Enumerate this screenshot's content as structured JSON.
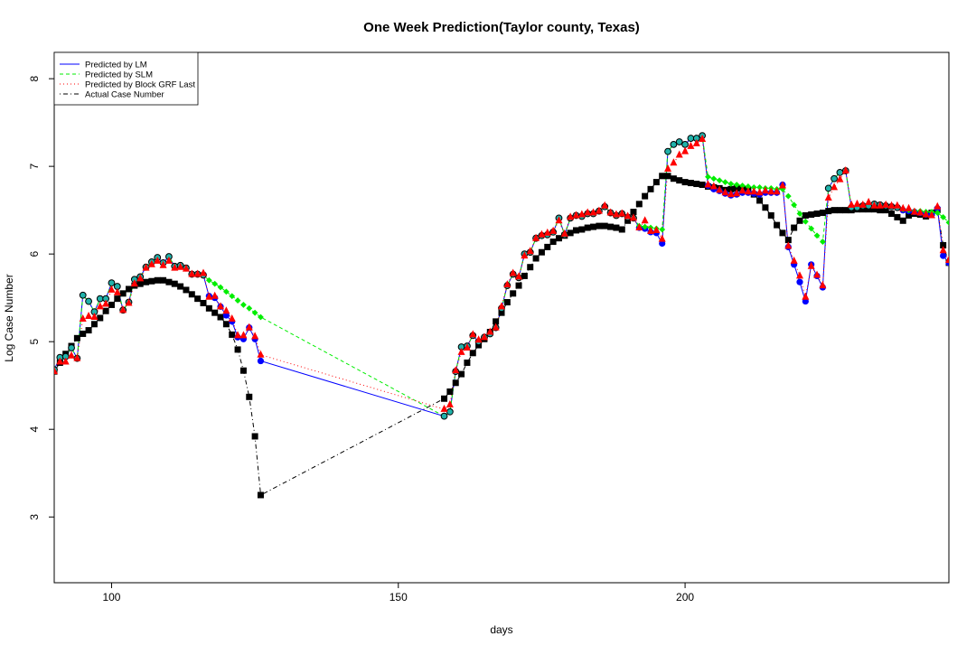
{
  "chart_data": {
    "type": "line",
    "title": "One Week Prediction(Taylor county, Texas)",
    "xlabel": "days",
    "ylabel": "Log Case Number",
    "xlim": [
      90,
      246
    ],
    "ylim": [
      2.25,
      8.3
    ],
    "x_ticks": [
      100,
      150,
      200
    ],
    "y_ticks": [
      3,
      4,
      5,
      6,
      7,
      8
    ],
    "grid": false,
    "legend_position": "top-left",
    "colors": {
      "lm": "#0000ff",
      "slm": "#00ee00",
      "grf": "#ff0000",
      "actual": "#000000",
      "turquoise_marker": "#20b2aa"
    },
    "series": [
      {
        "name": "Predicted by LM",
        "key": "lm",
        "line_style": "solid",
        "marker": "filled-circle",
        "x": [
          90,
          91,
          92,
          93,
          94,
          95,
          96,
          97,
          98,
          99,
          100,
          101,
          102,
          103,
          104,
          105,
          106,
          107,
          108,
          109,
          110,
          111,
          112,
          113,
          114,
          115,
          116,
          117,
          118,
          119,
          120,
          121,
          122,
          123,
          124,
          125,
          126,
          158,
          159,
          160,
          161,
          162,
          163,
          164,
          165,
          166,
          167,
          168,
          169,
          170,
          171,
          172,
          173,
          174,
          175,
          176,
          177,
          178,
          179,
          180,
          181,
          182,
          183,
          184,
          185,
          186,
          187,
          188,
          189,
          190,
          191,
          192,
          193,
          194,
          195,
          196,
          197,
          198,
          199,
          200,
          201,
          202,
          203,
          204,
          205,
          206,
          207,
          208,
          209,
          210,
          211,
          212,
          213,
          214,
          215,
          216,
          217,
          218,
          219,
          220,
          221,
          222,
          223,
          224,
          225,
          226,
          227,
          228,
          229,
          230,
          231,
          232,
          233,
          234,
          235,
          236,
          237,
          238,
          239,
          240,
          241,
          242,
          243,
          244,
          245,
          246
        ],
        "y": [
          4.68,
          4.82,
          4.83,
          4.93,
          4.81,
          5.53,
          5.46,
          5.34,
          5.49,
          5.49,
          5.67,
          5.63,
          5.36,
          5.45,
          5.71,
          5.74,
          5.85,
          5.91,
          5.96,
          5.9,
          5.97,
          5.86,
          5.87,
          5.84,
          5.77,
          5.77,
          5.76,
          5.52,
          5.5,
          5.4,
          5.3,
          5.23,
          5.05,
          5.03,
          5.16,
          5.03,
          4.78,
          4.15,
          4.2,
          4.66,
          4.94,
          4.95,
          5.07,
          5.0,
          5.05,
          5.09,
          5.16,
          5.38,
          5.64,
          5.77,
          5.73,
          6.0,
          6.02,
          6.18,
          6.21,
          6.22,
          6.25,
          6.41,
          6.22,
          6.41,
          6.44,
          6.43,
          6.46,
          6.46,
          6.49,
          6.54,
          6.47,
          6.44,
          6.46,
          6.42,
          6.41,
          6.3,
          6.29,
          6.25,
          6.24,
          6.12,
          7.17,
          7.25,
          7.28,
          7.25,
          7.32,
          7.32,
          7.35,
          6.78,
          6.74,
          6.72,
          6.69,
          6.67,
          6.68,
          6.7,
          6.7,
          6.69,
          6.68,
          6.7,
          6.7,
          6.7,
          6.79,
          6.08,
          5.88,
          5.68,
          5.46,
          5.88,
          5.75,
          5.62,
          6.75,
          6.86,
          6.93,
          6.95,
          6.53,
          6.53,
          6.55,
          6.55,
          6.57,
          6.56,
          6.55,
          6.54,
          6.53,
          6.5,
          6.49,
          6.48,
          6.47,
          6.45,
          6.45,
          6.52,
          5.98,
          5.9
        ]
      },
      {
        "name": "Predicted by SLM",
        "key": "slm",
        "line_style": "dashed",
        "marker": "filled-diamond",
        "x": [
          90,
          91,
          92,
          93,
          94,
          95,
          96,
          97,
          98,
          99,
          100,
          101,
          102,
          103,
          104,
          105,
          106,
          107,
          108,
          109,
          110,
          111,
          112,
          113,
          114,
          115,
          116,
          117,
          118,
          119,
          120,
          121,
          122,
          123,
          124,
          125,
          126,
          158,
          159,
          160,
          161,
          162,
          163,
          164,
          165,
          166,
          167,
          168,
          169,
          170,
          171,
          172,
          173,
          174,
          175,
          176,
          177,
          178,
          179,
          180,
          181,
          182,
          183,
          184,
          185,
          186,
          187,
          188,
          189,
          190,
          191,
          192,
          193,
          194,
          195,
          196,
          197,
          198,
          199,
          200,
          201,
          202,
          203,
          204,
          205,
          206,
          207,
          208,
          209,
          210,
          211,
          212,
          213,
          214,
          215,
          216,
          217,
          218,
          219,
          220,
          221,
          222,
          223,
          224,
          225,
          226,
          227,
          228,
          229,
          230,
          231,
          232,
          233,
          234,
          235,
          236,
          237,
          238,
          239,
          240,
          241,
          242,
          243,
          244,
          245,
          246
        ],
        "y": [
          4.68,
          4.82,
          4.83,
          4.93,
          4.81,
          5.53,
          5.46,
          5.34,
          5.49,
          5.49,
          5.67,
          5.63,
          5.36,
          5.45,
          5.71,
          5.74,
          5.85,
          5.91,
          5.96,
          5.9,
          5.97,
          5.86,
          5.87,
          5.84,
          5.77,
          5.77,
          5.76,
          5.7,
          5.66,
          5.62,
          5.57,
          5.52,
          5.47,
          5.42,
          5.38,
          5.33,
          5.28,
          4.15,
          4.2,
          4.66,
          4.94,
          4.95,
          5.07,
          5.0,
          5.05,
          5.09,
          5.16,
          5.38,
          5.64,
          5.77,
          5.73,
          6.0,
          6.02,
          6.18,
          6.21,
          6.22,
          6.25,
          6.41,
          6.22,
          6.41,
          6.44,
          6.43,
          6.46,
          6.46,
          6.49,
          6.54,
          6.47,
          6.44,
          6.46,
          6.42,
          6.41,
          6.32,
          6.31,
          6.3,
          6.29,
          6.28,
          7.17,
          7.25,
          7.28,
          7.25,
          7.32,
          7.32,
          7.35,
          6.88,
          6.86,
          6.84,
          6.82,
          6.8,
          6.79,
          6.78,
          6.77,
          6.76,
          6.76,
          6.75,
          6.75,
          6.74,
          6.74,
          6.66,
          6.56,
          6.46,
          6.37,
          6.29,
          6.21,
          6.14,
          6.75,
          6.86,
          6.93,
          6.95,
          6.53,
          6.53,
          6.55,
          6.55,
          6.57,
          6.56,
          6.55,
          6.54,
          6.53,
          6.51,
          6.5,
          6.49,
          6.49,
          6.48,
          6.48,
          6.47,
          6.42,
          6.36
        ]
      },
      {
        "name": "Predicted by Block GRF Last",
        "key": "grf",
        "line_style": "dotted",
        "marker": "filled-triangle",
        "x": [
          90,
          91,
          92,
          93,
          94,
          95,
          96,
          97,
          98,
          99,
          100,
          101,
          102,
          103,
          104,
          105,
          106,
          107,
          108,
          109,
          110,
          111,
          112,
          113,
          114,
          115,
          116,
          117,
          118,
          119,
          120,
          121,
          122,
          123,
          124,
          125,
          126,
          158,
          159,
          160,
          161,
          162,
          163,
          164,
          165,
          166,
          167,
          168,
          169,
          170,
          171,
          172,
          173,
          174,
          175,
          176,
          177,
          178,
          179,
          180,
          181,
          182,
          183,
          184,
          185,
          186,
          187,
          188,
          189,
          190,
          191,
          192,
          193,
          194,
          195,
          196,
          197,
          198,
          199,
          200,
          201,
          202,
          203,
          204,
          205,
          206,
          207,
          208,
          209,
          210,
          211,
          212,
          213,
          214,
          215,
          216,
          217,
          218,
          219,
          220,
          221,
          222,
          223,
          224,
          225,
          226,
          227,
          228,
          229,
          230,
          231,
          232,
          233,
          234,
          235,
          236,
          237,
          238,
          239,
          240,
          241,
          242,
          243,
          244,
          245,
          246
        ],
        "y": [
          4.66,
          4.77,
          4.77,
          4.84,
          4.81,
          5.26,
          5.29,
          5.28,
          5.4,
          5.43,
          5.59,
          5.56,
          5.36,
          5.44,
          5.66,
          5.72,
          5.84,
          5.88,
          5.92,
          5.87,
          5.92,
          5.84,
          5.85,
          5.83,
          5.77,
          5.77,
          5.78,
          5.51,
          5.52,
          5.4,
          5.35,
          5.26,
          5.07,
          5.07,
          5.16,
          5.06,
          4.85,
          4.23,
          4.28,
          4.67,
          4.88,
          4.93,
          5.08,
          5.02,
          5.05,
          5.11,
          5.16,
          5.4,
          5.65,
          5.78,
          5.74,
          5.98,
          6.03,
          6.18,
          6.22,
          6.24,
          6.26,
          6.38,
          6.23,
          6.42,
          6.44,
          6.45,
          6.47,
          6.47,
          6.49,
          6.55,
          6.47,
          6.45,
          6.46,
          6.43,
          6.41,
          6.3,
          6.38,
          6.26,
          6.27,
          6.17,
          6.97,
          7.04,
          7.13,
          7.17,
          7.23,
          7.26,
          7.31,
          6.79,
          6.77,
          6.73,
          6.7,
          6.68,
          6.69,
          6.72,
          6.71,
          6.71,
          6.7,
          6.72,
          6.71,
          6.71,
          6.78,
          6.09,
          5.92,
          5.75,
          5.51,
          5.86,
          5.76,
          5.64,
          6.64,
          6.76,
          6.85,
          6.95,
          6.56,
          6.57,
          6.56,
          6.59,
          6.55,
          6.55,
          6.56,
          6.55,
          6.55,
          6.52,
          6.52,
          6.48,
          6.47,
          6.45,
          6.44,
          6.54,
          6.04,
          5.93
        ]
      },
      {
        "name": "Actual Case Number",
        "key": "actual",
        "line_style": "dot-dash",
        "marker": "filled-square",
        "x": [
          90,
          91,
          92,
          93,
          94,
          95,
          96,
          97,
          98,
          99,
          100,
          101,
          102,
          103,
          104,
          105,
          106,
          107,
          108,
          109,
          110,
          111,
          112,
          113,
          114,
          115,
          116,
          117,
          118,
          119,
          120,
          121,
          122,
          123,
          124,
          125,
          126,
          158,
          159,
          160,
          161,
          162,
          163,
          164,
          165,
          166,
          167,
          168,
          169,
          170,
          171,
          172,
          173,
          174,
          175,
          176,
          177,
          178,
          179,
          180,
          181,
          182,
          183,
          184,
          185,
          186,
          187,
          188,
          189,
          190,
          191,
          192,
          193,
          194,
          195,
          196,
          197,
          198,
          199,
          200,
          201,
          202,
          203,
          204,
          205,
          206,
          207,
          208,
          209,
          210,
          211,
          212,
          213,
          214,
          215,
          216,
          217,
          218,
          219,
          220,
          221,
          222,
          223,
          224,
          225,
          226,
          227,
          228,
          229,
          230,
          231,
          232,
          233,
          234,
          235,
          236,
          237,
          238,
          239,
          240,
          241,
          242,
          243,
          244,
          245,
          246
        ],
        "y": [
          4.66,
          4.76,
          4.86,
          4.95,
          5.04,
          5.09,
          5.13,
          5.2,
          5.27,
          5.35,
          5.42,
          5.49,
          5.55,
          5.6,
          5.64,
          5.66,
          5.68,
          5.69,
          5.7,
          5.7,
          5.68,
          5.66,
          5.63,
          5.59,
          5.54,
          5.49,
          5.44,
          5.38,
          5.33,
          5.28,
          5.2,
          5.08,
          4.91,
          4.67,
          4.37,
          3.92,
          3.25,
          4.35,
          4.43,
          4.53,
          4.63,
          4.76,
          4.87,
          4.96,
          5.03,
          5.11,
          5.23,
          5.33,
          5.45,
          5.55,
          5.64,
          5.75,
          5.85,
          5.95,
          6.02,
          6.08,
          6.14,
          6.18,
          6.21,
          6.24,
          6.27,
          6.28,
          6.3,
          6.31,
          6.32,
          6.32,
          6.31,
          6.3,
          6.28,
          6.38,
          6.48,
          6.57,
          6.66,
          6.74,
          6.82,
          6.89,
          6.89,
          6.86,
          6.84,
          6.82,
          6.81,
          6.8,
          6.79,
          6.77,
          6.76,
          6.75,
          6.73,
          6.74,
          6.75,
          6.74,
          6.73,
          6.68,
          6.61,
          6.53,
          6.44,
          6.33,
          6.24,
          6.16,
          6.3,
          6.38,
          6.44,
          6.45,
          6.46,
          6.47,
          6.49,
          6.5,
          6.5,
          6.5,
          6.5,
          6.51,
          6.51,
          6.51,
          6.51,
          6.5,
          6.5,
          6.46,
          6.42,
          6.38,
          6.44,
          6.46,
          6.45,
          6.43,
          6.47,
          6.5,
          6.1,
          5.9
        ]
      }
    ]
  }
}
